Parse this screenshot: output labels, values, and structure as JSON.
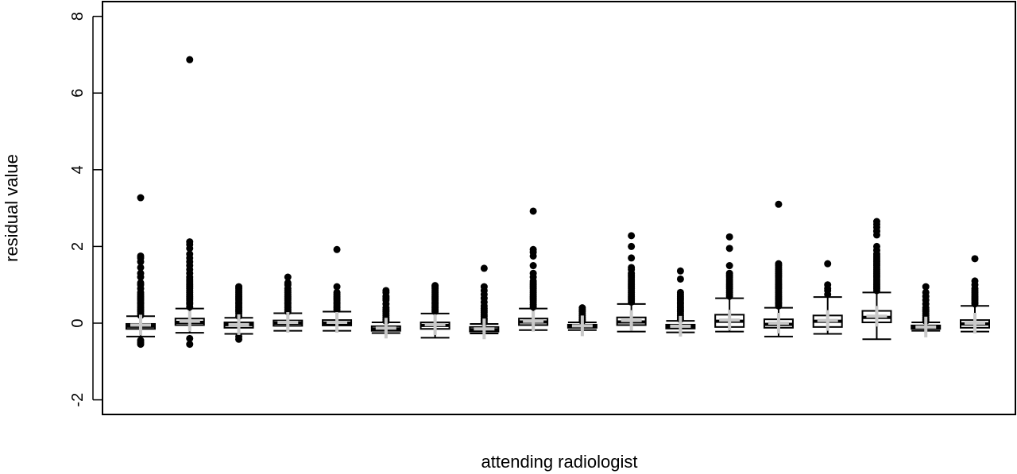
{
  "chart_data": {
    "type": "boxplot",
    "title": "",
    "xlabel": "attending radiologist",
    "ylabel": "residual value",
    "ylim": [
      -2.4,
      8.4
    ],
    "yticks": [
      -2,
      0,
      2,
      4,
      6,
      8
    ],
    "ytick_labels": [
      "-2",
      "0",
      "2",
      "4",
      "6",
      "8"
    ],
    "grid": false,
    "legend": "none",
    "colors": {
      "box": "#ffffff",
      "stroke": "#000000",
      "point": "#000000",
      "mean_marker": "#c8c8c8"
    },
    "boxes": [
      {
        "q1": -0.15,
        "median": -0.08,
        "q3": -0.02,
        "whisker_low": -0.35,
        "whisker_high": 0.18,
        "mean": -0.05,
        "outliers_low": [
          -0.45,
          -0.5,
          -0.55
        ],
        "outliers_high": [
          0.2,
          0.25,
          0.3,
          0.35,
          0.4,
          0.45,
          0.5,
          0.55,
          0.6,
          0.65,
          0.7,
          0.75,
          0.8,
          0.9,
          1.0,
          1.05,
          1.2,
          1.3,
          1.45,
          1.6,
          1.7,
          1.75,
          3.27
        ]
      },
      {
        "q1": -0.05,
        "median": 0.02,
        "q3": 0.12,
        "whisker_low": -0.25,
        "whisker_high": 0.38,
        "mean": 0.05,
        "outliers_low": [
          -0.4,
          -0.55
        ],
        "outliers_high": [
          0.42,
          0.5,
          0.55,
          0.6,
          0.65,
          0.7,
          0.75,
          0.8,
          0.85,
          0.9,
          0.95,
          1.0,
          1.05,
          1.1,
          1.15,
          1.2,
          1.3,
          1.4,
          1.5,
          1.6,
          1.7,
          1.8,
          1.95,
          2.05,
          2.12,
          6.87
        ]
      },
      {
        "q1": -0.12,
        "median": -0.04,
        "q3": 0.02,
        "whisker_low": -0.28,
        "whisker_high": 0.14,
        "mean": -0.04,
        "outliers_low": [
          -0.35,
          -0.42
        ],
        "outliers_high": [
          0.18,
          0.25,
          0.3,
          0.35,
          0.4,
          0.45,
          0.5,
          0.55,
          0.6,
          0.65,
          0.7,
          0.75,
          0.8,
          0.85,
          0.9,
          0.95
        ]
      },
      {
        "q1": -0.07,
        "median": 0.0,
        "q3": 0.07,
        "whisker_low": -0.2,
        "whisker_high": 0.26,
        "mean": 0.02,
        "outliers_low": [],
        "outliers_high": [
          0.3,
          0.35,
          0.4,
          0.45,
          0.5,
          0.55,
          0.6,
          0.65,
          0.7,
          0.75,
          0.8,
          0.85,
          0.9,
          1.0,
          1.05,
          1.2
        ]
      },
      {
        "q1": -0.06,
        "median": 0.0,
        "q3": 0.08,
        "whisker_low": -0.2,
        "whisker_high": 0.3,
        "mean": 0.02,
        "outliers_low": [],
        "outliers_high": [
          0.35,
          0.4,
          0.45,
          0.5,
          0.55,
          0.6,
          0.65,
          0.7,
          0.75,
          0.8,
          0.95,
          1.92
        ]
      },
      {
        "q1": -0.2,
        "median": -0.15,
        "q3": -0.08,
        "whisker_low": -0.26,
        "whisker_high": 0.02,
        "mean": -0.13,
        "outliers_low": [],
        "outliers_high": [
          0.05,
          0.1,
          0.15,
          0.2,
          0.25,
          0.3,
          0.35,
          0.4,
          0.5,
          0.6,
          0.65,
          0.7,
          0.8,
          0.85
        ]
      },
      {
        "q1": -0.15,
        "median": -0.06,
        "q3": 0.02,
        "whisker_low": -0.38,
        "whisker_high": 0.25,
        "mean": -0.04,
        "outliers_low": [],
        "outliers_high": [
          0.3,
          0.35,
          0.4,
          0.45,
          0.5,
          0.55,
          0.6,
          0.65,
          0.7,
          0.75,
          0.8,
          0.85,
          0.9,
          0.95,
          0.98
        ]
      },
      {
        "q1": -0.22,
        "median": -0.17,
        "q3": -0.1,
        "whisker_low": -0.27,
        "whisker_high": -0.02,
        "mean": -0.15,
        "outliers_low": [],
        "outliers_high": [
          0.02,
          0.08,
          0.12,
          0.18,
          0.22,
          0.28,
          0.32,
          0.38,
          0.45,
          0.55,
          0.65,
          0.75,
          0.85,
          0.95,
          1.43
        ]
      },
      {
        "q1": -0.05,
        "median": 0.03,
        "q3": 0.12,
        "whisker_low": -0.18,
        "whisker_high": 0.38,
        "mean": 0.05,
        "outliers_low": [],
        "outliers_high": [
          0.42,
          0.48,
          0.55,
          0.6,
          0.65,
          0.7,
          0.75,
          0.8,
          0.85,
          0.9,
          0.95,
          1.0,
          1.05,
          1.1,
          1.2,
          1.3,
          1.5,
          1.75,
          1.85,
          1.92,
          2.92
        ]
      },
      {
        "q1": -0.12,
        "median": -0.08,
        "q3": -0.04,
        "whisker_low": -0.18,
        "whisker_high": 0.02,
        "mean": -0.07,
        "outliers_low": [],
        "outliers_high": [
          0.05,
          0.1,
          0.15,
          0.2,
          0.25,
          0.3,
          0.35,
          0.4
        ]
      },
      {
        "q1": -0.05,
        "median": 0.03,
        "q3": 0.15,
        "whisker_low": -0.22,
        "whisker_high": 0.5,
        "mean": 0.07,
        "outliers_low": [],
        "outliers_high": [
          0.55,
          0.6,
          0.65,
          0.7,
          0.75,
          0.8,
          0.85,
          0.9,
          0.95,
          1.0,
          1.05,
          1.1,
          1.15,
          1.2,
          1.25,
          1.3,
          1.4,
          1.45,
          1.7,
          2.0,
          2.28
        ]
      },
      {
        "q1": -0.14,
        "median": -0.09,
        "q3": -0.04,
        "whisker_low": -0.24,
        "whisker_high": 0.06,
        "mean": -0.08,
        "outliers_low": [],
        "outliers_high": [
          0.1,
          0.15,
          0.2,
          0.25,
          0.3,
          0.35,
          0.4,
          0.45,
          0.5,
          0.55,
          0.6,
          0.65,
          0.7,
          0.75,
          0.8,
          1.15,
          1.36
        ]
      },
      {
        "q1": -0.1,
        "median": 0.05,
        "q3": 0.22,
        "whisker_low": -0.22,
        "whisker_high": 0.65,
        "mean": 0.08,
        "outliers_low": [],
        "outliers_high": [
          0.7,
          0.75,
          0.8,
          0.85,
          0.9,
          0.95,
          1.0,
          1.05,
          1.1,
          1.15,
          1.2,
          1.25,
          1.3,
          1.5,
          1.95,
          2.25
        ]
      },
      {
        "q1": -0.12,
        "median": -0.03,
        "q3": 0.1,
        "whisker_low": -0.35,
        "whisker_high": 0.4,
        "mean": 0.0,
        "outliers_low": [],
        "outliers_high": [
          0.45,
          0.5,
          0.55,
          0.6,
          0.65,
          0.7,
          0.75,
          0.8,
          0.85,
          0.9,
          0.95,
          1.0,
          1.05,
          1.1,
          1.15,
          1.2,
          1.25,
          1.3,
          1.35,
          1.4,
          1.45,
          1.5,
          1.55,
          3.1
        ]
      },
      {
        "q1": -0.1,
        "median": 0.05,
        "q3": 0.2,
        "whisker_low": -0.28,
        "whisker_high": 0.68,
        "mean": 0.07,
        "outliers_low": [],
        "outliers_high": [
          0.75,
          0.85,
          0.9,
          1.0,
          1.55
        ]
      },
      {
        "q1": 0.02,
        "median": 0.15,
        "q3": 0.32,
        "whisker_low": -0.42,
        "whisker_high": 0.8,
        "mean": 0.18,
        "outliers_low": [],
        "outliers_high": [
          0.85,
          0.9,
          0.95,
          1.0,
          1.05,
          1.1,
          1.15,
          1.2,
          1.25,
          1.3,
          1.35,
          1.4,
          1.45,
          1.5,
          1.55,
          1.6,
          1.65,
          1.7,
          1.75,
          1.8,
          1.9,
          2.0,
          2.3,
          2.4,
          2.5,
          2.58,
          2.65
        ]
      },
      {
        "q1": -0.15,
        "median": -0.11,
        "q3": -0.06,
        "whisker_low": -0.2,
        "whisker_high": 0.02,
        "mean": -0.1,
        "outliers_low": [],
        "outliers_high": [
          0.05,
          0.1,
          0.15,
          0.2,
          0.25,
          0.3,
          0.35,
          0.4,
          0.5,
          0.6,
          0.7,
          0.8,
          0.95
        ]
      },
      {
        "q1": -0.12,
        "median": -0.02,
        "q3": 0.08,
        "whisker_low": -0.22,
        "whisker_high": 0.45,
        "mean": 0.0,
        "outliers_low": [],
        "outliers_high": [
          0.5,
          0.55,
          0.6,
          0.65,
          0.7,
          0.75,
          0.8,
          0.85,
          0.9,
          1.0,
          1.1,
          1.68
        ]
      }
    ]
  }
}
